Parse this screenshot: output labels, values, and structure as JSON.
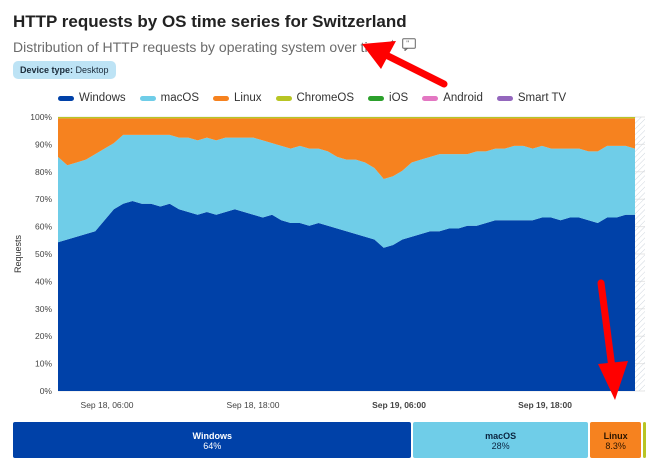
{
  "header": {
    "title": "HTTP requests by OS time series for Switzerland",
    "subtitle": "Distribution of HTTP requests by operating system over time",
    "badge_key": "Device type:",
    "badge_value": "Desktop"
  },
  "chart_data": {
    "type": "area",
    "stacked": true,
    "normalized": true,
    "ylabel": "Requests",
    "ylim": [
      0,
      100
    ],
    "yticks": [
      "0%",
      "10%",
      "20%",
      "30%",
      "40%",
      "50%",
      "60%",
      "70%",
      "80%",
      "90%",
      "100%"
    ],
    "xticks": [
      {
        "label": "Sep 18, 06:00",
        "bold": false
      },
      {
        "label": "Sep 18, 18:00",
        "bold": false
      },
      {
        "label": "Sep 19, 06:00",
        "bold": true
      },
      {
        "label": "Sep 19, 18:00",
        "bold": true
      }
    ],
    "x_start": "Sep 18, 00:00",
    "legend_position": "top",
    "series": [
      {
        "name": "Windows",
        "color": "#0041a8",
        "values": [
          54,
          55,
          56,
          57,
          58,
          62,
          66,
          68,
          69,
          68,
          68,
          67,
          68,
          66,
          65,
          64,
          65,
          64,
          65,
          66,
          65,
          64,
          63,
          64,
          62,
          61,
          61,
          60,
          61,
          60,
          59,
          58,
          57,
          56,
          55,
          52,
          53,
          55,
          56,
          57,
          58,
          58,
          59,
          59,
          60,
          60,
          61,
          62,
          62,
          62,
          62,
          62,
          63,
          63,
          62,
          63,
          63,
          62,
          61,
          63,
          63,
          64,
          64
        ]
      },
      {
        "name": "macOS",
        "color": "#6fcde8",
        "values": [
          31,
          27,
          27,
          27,
          28,
          26,
          24,
          25,
          24,
          25,
          25,
          26,
          25,
          26,
          27,
          27,
          27,
          27,
          27,
          26,
          27,
          28,
          28,
          26,
          27,
          27,
          28,
          28,
          27,
          27,
          26,
          26,
          27,
          27,
          26,
          25,
          25,
          25,
          27,
          27,
          27,
          28,
          27,
          27,
          26,
          27,
          26,
          26,
          26,
          27,
          27,
          26,
          26,
          25,
          26,
          25,
          25,
          25,
          26,
          26,
          26,
          25,
          24
        ]
      },
      {
        "name": "Linux",
        "color": "#f6821f",
        "values": [
          14,
          17,
          16,
          15,
          13,
          11,
          9,
          6,
          6,
          6,
          6,
          6,
          6,
          7,
          7,
          8,
          7,
          8,
          7,
          7,
          7,
          7,
          8,
          9,
          10,
          11,
          10,
          11,
          11,
          12,
          14,
          15,
          15,
          16,
          18,
          22,
          21,
          19,
          16,
          15,
          14,
          13,
          13,
          13,
          13,
          12,
          12,
          11,
          11,
          10,
          10,
          11,
          10,
          11,
          11,
          11,
          11,
          12,
          12,
          10,
          10,
          10,
          11
        ]
      },
      {
        "name": "ChromeOS",
        "color": "#b8c524",
        "values": [
          0.5,
          0.5,
          0.5,
          0.5,
          0.5,
          0.5,
          0.5,
          0.5,
          0.5,
          0.5,
          0.5,
          0.5,
          0.5,
          0.5,
          0.5,
          0.5,
          0.5,
          0.5,
          0.5,
          0.5,
          0.5,
          0.5,
          0.5,
          0.5,
          0.5,
          0.5,
          0.5,
          0.5,
          0.5,
          0.5,
          0.5,
          0.5,
          0.5,
          0.5,
          0.5,
          0.5,
          0.5,
          0.5,
          0.5,
          0.5,
          0.5,
          0.5,
          0.5,
          0.5,
          0.5,
          0.5,
          0.5,
          0.5,
          0.5,
          0.5,
          0.5,
          0.5,
          0.5,
          0.5,
          0.5,
          0.5,
          0.5,
          0.5,
          0.5,
          0.5,
          0.5,
          0.5,
          0.5
        ]
      },
      {
        "name": "iOS",
        "color": "#2ca02c",
        "values": []
      },
      {
        "name": "Android",
        "color": "#e377c2",
        "values": []
      },
      {
        "name": "Smart TV",
        "color": "#9467bd",
        "values": []
      }
    ],
    "summary": [
      {
        "name": "Windows",
        "percent": "64%",
        "share": 64,
        "color": "#0041a8",
        "text_color": "#ffffff"
      },
      {
        "name": "macOS",
        "percent": "28%",
        "share": 28,
        "color": "#6fcde8",
        "text_color": "#0b2540"
      },
      {
        "name": "Linux",
        "percent": "8.3%",
        "share": 8.3,
        "color": "#f6821f",
        "text_color": "#2a1500"
      },
      {
        "name": "ChromeOS",
        "percent": "",
        "share": 0.4,
        "color": "#b8c524",
        "text_color": "#222"
      }
    ]
  }
}
